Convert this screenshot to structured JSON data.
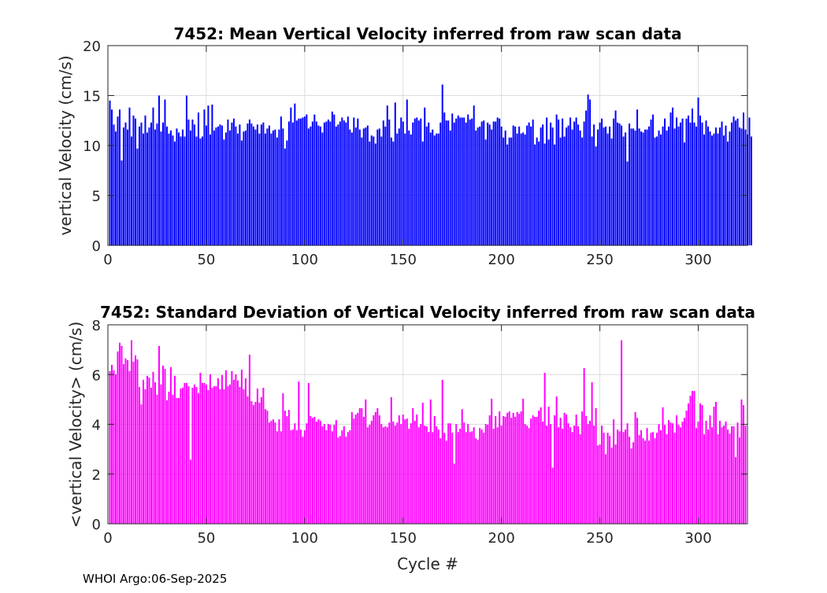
{
  "footer": "WHOI Argo:06-Sep-2025",
  "colors": {
    "top_bars": "#0000ff",
    "bottom_bars": "#ff00ff"
  },
  "chart_data": [
    {
      "type": "bar",
      "title": "7452: Mean Vertical Velocity inferred from raw scan data",
      "xlabel": "",
      "ylabel": "vertical Velocity (cm/s)",
      "xlim": [
        0,
        325
      ],
      "ylim": [
        0,
        20
      ],
      "xticks": [
        0,
        50,
        100,
        150,
        200,
        250,
        300
      ],
      "yticks": [
        0,
        5,
        10,
        15,
        20
      ],
      "grid": true,
      "values": [
        14.5,
        13.6,
        12.1,
        11.4,
        12.9,
        13.6,
        8.5,
        11.8,
        12.3,
        11.6,
        13.8,
        10.9,
        13.0,
        12.7,
        9.7,
        11.9,
        12.3,
        11.2,
        13.0,
        11.3,
        11.8,
        12.3,
        13.8,
        11.6,
        12.2,
        15.0,
        11.4,
        12.3,
        14.6,
        11.9,
        11.2,
        11.5,
        11.0,
        10.4,
        11.7,
        11.3,
        10.9,
        11.6,
        10.9,
        15.0,
        12.6,
        11.5,
        12.6,
        12.1,
        10.9,
        13.3,
        10.7,
        10.9,
        13.6,
        12.0,
        14.0,
        11.1,
        14.1,
        11.5,
        11.8,
        11.9,
        12.1,
        12.0,
        10.6,
        11.3,
        12.6,
        11.5,
        12.3,
        12.7,
        11.9,
        11.2,
        12.1,
        10.5,
        11.4,
        11.5,
        12.2,
        12.6,
        12.2,
        11.9,
        11.6,
        12.1,
        11.2,
        12.1,
        12.3,
        11.2,
        11.7,
        12.0,
        11.2,
        11.5,
        11.6,
        10.8,
        11.6,
        12.9,
        11.7,
        9.7,
        10.5,
        12.4,
        13.8,
        12.3,
        14.2,
        12.5,
        12.7,
        12.7,
        12.8,
        12.9,
        13.1,
        11.7,
        11.9,
        12.4,
        13.1,
        12.4,
        12.0,
        11.9,
        11.3,
        12.3,
        12.4,
        12.6,
        12.4,
        13.4,
        13.1,
        11.9,
        12.1,
        12.4,
        12.8,
        12.5,
        12.3,
        12.9,
        11.6,
        11.3,
        12.8,
        11.8,
        12.7,
        11.6,
        10.8,
        11.7,
        11.8,
        12.0,
        10.4,
        11.0,
        10.9,
        10.2,
        11.6,
        11.7,
        10.9,
        12.5,
        11.9,
        14.0,
        12.6,
        10.8,
        10.4,
        14.3,
        11.2,
        11.7,
        12.8,
        12.4,
        11.2,
        14.6,
        11.5,
        11.1,
        12.3,
        12.7,
        12.8,
        12.5,
        12.7,
        10.4,
        13.8,
        11.9,
        12.3,
        11.3,
        11.6,
        11.0,
        11.2,
        11.2,
        12.3,
        16.1,
        13.3,
        12.5,
        12.5,
        11.5,
        13.2,
        12.3,
        12.7,
        13.0,
        12.8,
        12.8,
        12.8,
        12.3,
        13.1,
        12.6,
        12.7,
        14.0,
        11.5,
        11.8,
        11.9,
        12.4,
        12.5,
        10.6,
        12.3,
        12.1,
        11.6,
        12.4,
        12.4,
        12.8,
        12.7,
        11.9,
        10.8,
        11.5,
        10.1,
        10.8,
        10.8,
        12.0,
        11.9,
        11.2,
        11.9,
        11.2,
        11.3,
        11.1,
        12.0,
        12.3,
        11.9,
        12.6,
        10.1,
        10.8,
        10.4,
        11.8,
        12.1,
        10.2,
        12.8,
        10.6,
        12.3,
        11.8,
        10.1,
        13.1,
        12.6,
        10.8,
        12.7,
        10.9,
        11.8,
        12.0,
        12.8,
        11.6,
        12.4,
        12.8,
        12.1,
        11.5,
        10.8,
        12.4,
        13.5,
        15.1,
        14.6,
        10.9,
        12.1,
        9.9,
        11.6,
        12.3,
        12.7,
        11.8,
        11.9,
        11.2,
        11.9,
        10.7,
        12.7,
        13.5,
        12.3,
        12.2,
        12.0,
        10.9,
        11.3,
        8.4,
        12.2,
        11.7,
        11.7,
        11.5,
        13.6,
        11.7,
        11.4,
        11.3,
        11.6,
        11.6,
        11.9,
        12.6,
        13.1,
        10.8,
        10.9,
        11.5,
        11.1,
        11.9,
        12.7,
        11.5,
        11.9,
        13.3,
        13.8,
        11.7,
        12.8,
        11.9,
        12.3,
        12.7,
        10.3,
        12.7,
        13.0,
        12.3,
        13.7,
        12.3,
        11.9,
        14.8,
        13.0,
        12.3,
        11.1,
        12.5,
        11.9,
        11.4,
        11.0,
        11.2,
        11.8,
        11.2,
        11.8,
        12.4,
        11.0,
        12.0,
        10.4,
        11.4,
        12.3,
        12.9,
        12.5,
        12.7,
        11.8,
        11.7,
        13.3,
        11.6,
        11.1,
        12.8,
        10.9
      ]
    },
    {
      "type": "bar",
      "title": "7452: Standard Deviation of Vertical Velocity inferred from raw scan data",
      "xlabel": "Cycle #",
      "ylabel": "<vertical Velocity> (cm/s)",
      "xlim": [
        0,
        325
      ],
      "ylim": [
        0,
        8
      ],
      "xticks": [
        0,
        50,
        100,
        150,
        200,
        250,
        300
      ],
      "yticks": [
        0,
        2,
        4,
        6,
        8
      ],
      "grid": true,
      "values": [
        6.14,
        6.39,
        6.17,
        6.01,
        6.93,
        7.28,
        7.15,
        6.42,
        6.65,
        6.58,
        6.14,
        7.38,
        6.52,
        6.77,
        6.61,
        5.5,
        4.8,
        5.79,
        5.41,
        5.95,
        5.88,
        5.47,
        6.11,
        5.69,
        5.19,
        7.15,
        5.6,
        6.36,
        6.23,
        4.96,
        5.31,
        6.3,
        5.19,
        5.95,
        5.06,
        5.06,
        5.44,
        5.47,
        5.66,
        5.66,
        5.53,
        2.58,
        5.47,
        5.6,
        5.5,
        5.25,
        6.07,
        5.66,
        5.66,
        5.6,
        5.38,
        6.01,
        5.47,
        5.53,
        5.53,
        5.85,
        5.41,
        5.98,
        5.41,
        6.17,
        5.53,
        5.6,
        6.14,
        5.79,
        6.01,
        5.76,
        5.5,
        6.2,
        5.41,
        5.85,
        5.12,
        6.8,
        4.93,
        4.77,
        4.9,
        5.44,
        4.87,
        5.09,
        5.47,
        4.61,
        4.55,
        4.07,
        4.14,
        4.2,
        4.07,
        3.72,
        4.2,
        3.72,
        5.25,
        4.55,
        4.33,
        4.58,
        3.76,
        3.79,
        4.04,
        3.76,
        5.72,
        3.79,
        3.5,
        3.76,
        4.04,
        5.66,
        4.33,
        4.26,
        4.3,
        4.11,
        4.2,
        4.14,
        3.92,
        4.01,
        3.76,
        4.01,
        3.98,
        3.72,
        3.98,
        4.17,
        3.47,
        3.53,
        3.76,
        3.92,
        3.5,
        3.69,
        3.76,
        4.49,
        4.23,
        4.39,
        4.46,
        4.65,
        4.65,
        4.3,
        5.0,
        3.88,
        3.98,
        4.14,
        4.36,
        4.49,
        4.65,
        4.36,
        4.01,
        3.88,
        3.92,
        3.88,
        4.07,
        5.09,
        4.11,
        3.95,
        4.07,
        4.36,
        4.01,
        4.39,
        4.2,
        4.23,
        3.82,
        4.04,
        4.65,
        4.14,
        4.39,
        3.88,
        4.01,
        4.87,
        3.95,
        3.92,
        3.69,
        5.0,
        3.69,
        4.33,
        3.92,
        3.79,
        3.44,
        5.79,
        3.66,
        3.34,
        4.04,
        4.04,
        3.66,
        2.42,
        4.01,
        3.69,
        3.82,
        4.61,
        4.07,
        3.69,
        4.01,
        3.69,
        3.72,
        3.88,
        3.44,
        3.38,
        3.85,
        3.79,
        3.66,
        4.01,
        3.98,
        4.36,
        5.03,
        3.82,
        4.33,
        3.88,
        4.52,
        3.95,
        4.33,
        4.3,
        4.46,
        4.52,
        4.26,
        4.46,
        4.3,
        4.49,
        4.42,
        4.52,
        5.03,
        4.01,
        3.95,
        3.85,
        4.23,
        4.36,
        4.3,
        4.3,
        4.55,
        4.68,
        4.11,
        6.07,
        3.95,
        4.71,
        4.01,
        2.26,
        4.36,
        5.12,
        3.88,
        4.26,
        3.82,
        4.46,
        4.39,
        4.04,
        3.88,
        3.69,
        3.95,
        4.39,
        3.92,
        3.6,
        4.52,
        6.26,
        4.33,
        4.01,
        4.14,
        5.69,
        3.95,
        4.65,
        3.15,
        3.19,
        3.95,
        3.66,
        2.8,
        3.66,
        3.53,
        3.06,
        4.2,
        3.19,
        3.79,
        3.72,
        7.38,
        3.69,
        3.79,
        4.04,
        3.5,
        3.03,
        3.28,
        4.49,
        4.26,
        3.57,
        3.76,
        3.44,
        3.34,
        3.85,
        3.34,
        3.66,
        3.69,
        3.44,
        3.66,
        4.01,
        3.76,
        4.68,
        3.98,
        3.6,
        4.17,
        4.07,
        4.04,
        3.66,
        4.36,
        3.98,
        3.88,
        4.11,
        4.26,
        4.55,
        4.84,
        5.15,
        5.34,
        5.34,
        3.85,
        4.11,
        4.84,
        4.77,
        3.6,
        4.14,
        3.79,
        4.36,
        3.88,
        4.71,
        4.9,
        3.6,
        4.14,
        3.88,
        3.95,
        4.11,
        3.79,
        3.63,
        3.92,
        3.92,
        2.68,
        4.07,
        3.47,
        5.0,
        4.77,
        3.95
      ]
    }
  ]
}
